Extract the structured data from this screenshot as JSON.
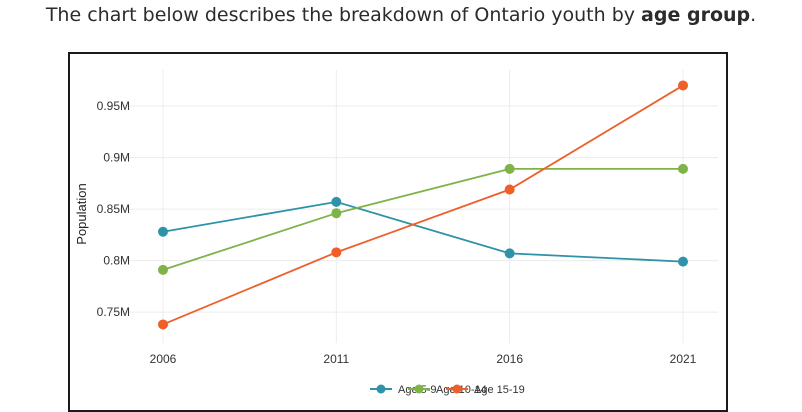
{
  "intro": {
    "before": "The chart below describes the breakdown of Ontario youth by ",
    "bold": "age group",
    "after": "."
  },
  "chart_data": {
    "type": "line",
    "x": [
      "2006",
      "2011",
      "2016",
      "2021"
    ],
    "ylabel": "Population",
    "xlabel": "",
    "ylim": [
      0.72,
      0.985
    ],
    "y_ticks": [
      0.75,
      0.8,
      0.85,
      0.9,
      0.95
    ],
    "y_tick_labels": [
      "0.75M",
      "0.8M",
      "0.85M",
      "0.9M",
      "0.95M"
    ],
    "grid": true,
    "legend_position": "bottom",
    "series": [
      {
        "name": "Age 5-9",
        "color": "#2e93a8",
        "values": [
          0.828,
          0.857,
          0.807,
          0.799
        ]
      },
      {
        "name": "Age 10-14",
        "color": "#7fb348",
        "values": [
          0.791,
          0.846,
          0.889,
          0.889
        ]
      },
      {
        "name": "Age 15-19",
        "color": "#ee5f2a",
        "values": [
          0.738,
          0.808,
          0.869,
          0.97
        ]
      }
    ]
  }
}
